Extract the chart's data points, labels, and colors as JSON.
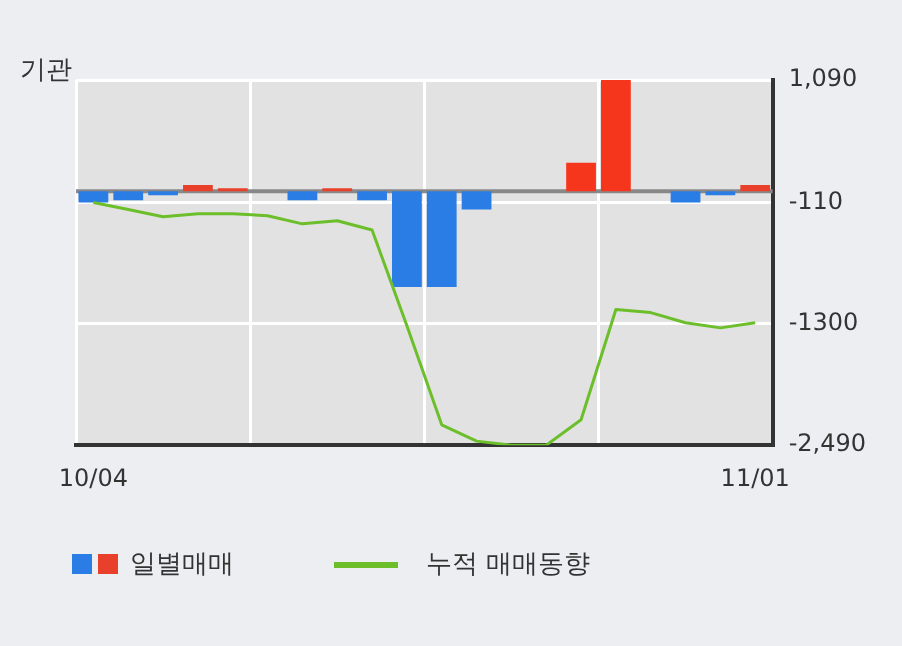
{
  "chart_data": {
    "type": "bar",
    "title": "기관",
    "categories": [
      "10/04",
      null,
      null,
      null,
      null,
      null,
      null,
      null,
      null,
      null,
      null,
      null,
      null,
      null,
      null,
      null,
      null,
      null,
      null,
      "11/01"
    ],
    "series": [
      {
        "name": "일별매매",
        "colors": [
          "#2b7de6",
          "#2b7de6",
          "#2b7de6",
          "#e8402a",
          "#e8402a",
          "#e8402a",
          "#2b7de6",
          "#e8402a",
          "#2b7de6",
          "#2b7de6",
          "#2b7de6",
          "#2b7de6",
          "#e8402a",
          "#e8402a",
          "#f5361c",
          "#f5361c",
          "#2b7de6",
          "#2b7de6",
          "#2b7de6",
          "#e8402a"
        ],
        "values": [
          -110,
          -90,
          -40,
          60,
          30,
          0,
          -90,
          30,
          -90,
          -940,
          -940,
          -180,
          0,
          0,
          280,
          1090,
          0,
          -110,
          -40,
          60
        ]
      },
      {
        "name": "누적 매매동향",
        "type": "line",
        "color": "#6cbf2a",
        "values": [
          -110,
          -180,
          -250,
          -220,
          -220,
          -240,
          -320,
          -290,
          -380,
          -1320,
          -2290,
          -2450,
          -2490,
          -2490,
          -2240,
          -1160,
          -1190,
          -1290,
          -1340,
          -1290
        ]
      }
    ],
    "ylim": [
      -2490,
      1090
    ],
    "yticks": [
      {
        "value": 1090,
        "label": "1,090"
      },
      -110,
      -1300,
      {
        "value": -2490,
        "label": "-2,490"
      }
    ],
    "grid": true,
    "legend": "bottom"
  }
}
